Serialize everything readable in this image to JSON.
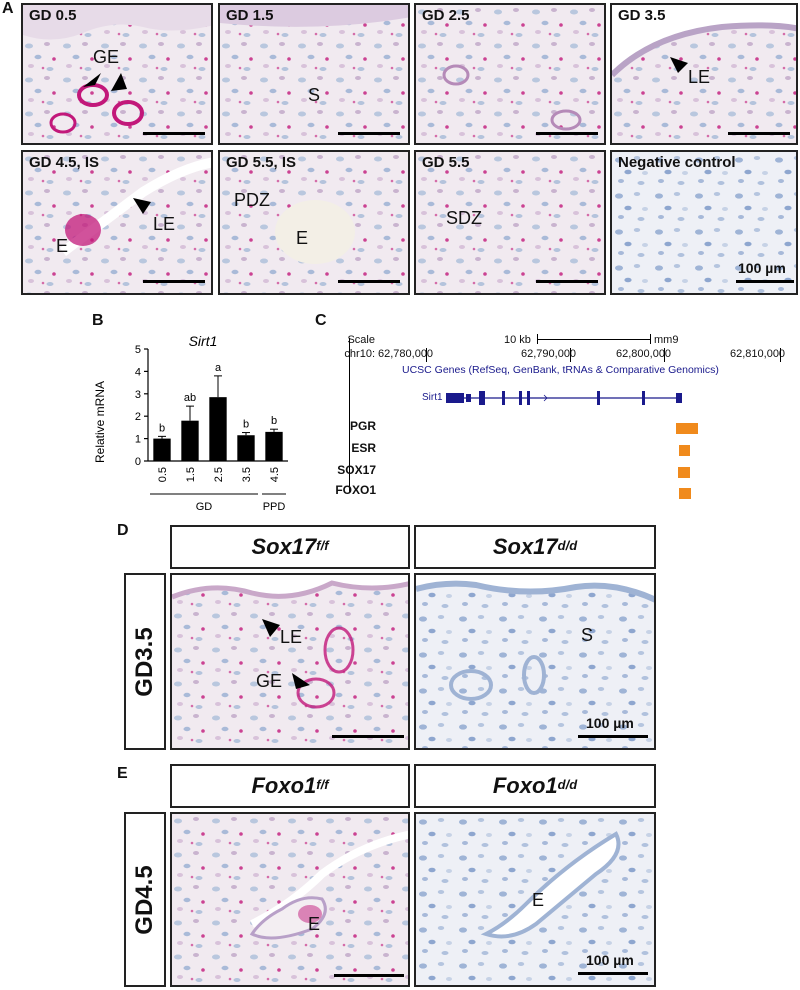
{
  "panels": {
    "a": "A",
    "b": "B",
    "c": "C",
    "d": "D",
    "e": "E"
  },
  "panel_a": {
    "tiles": [
      {
        "title": "GD 0.5",
        "labels": [
          "GE"
        ]
      },
      {
        "title": "GD 1.5",
        "labels": [
          "S"
        ]
      },
      {
        "title": "GD 2.5",
        "labels": []
      },
      {
        "title": "GD 3.5",
        "labels": [
          "LE"
        ]
      },
      {
        "title": "GD 4.5, IS",
        "labels": [
          "E",
          "LE"
        ]
      },
      {
        "title": "GD 5.5, IS",
        "labels": [
          "PDZ",
          "E"
        ]
      },
      {
        "title": "GD 5.5",
        "labels": [
          "SDZ"
        ]
      },
      {
        "title": "Negative control",
        "labels": []
      }
    ],
    "scale_text": "100 µm"
  },
  "chart_data": {
    "type": "bar",
    "title": "Sirt1",
    "ylabel": "Relative mRNA",
    "ylim": [
      0,
      5
    ],
    "yticks": [
      0,
      1,
      2,
      3,
      4,
      5
    ],
    "categories": [
      "0.5",
      "1.5",
      "2.5",
      "3.5",
      "4.5"
    ],
    "values": [
      1.0,
      1.8,
      2.85,
      1.15,
      1.3
    ],
    "errors": [
      0.1,
      0.65,
      0.95,
      0.12,
      0.12
    ],
    "letters": [
      "b",
      "ab",
      "a",
      "b",
      "b"
    ],
    "groups": [
      {
        "label": "GD",
        "from": 0,
        "to": 3
      },
      {
        "label": "PPD",
        "from": 4,
        "to": 4
      }
    ],
    "bar_color": "#000000"
  },
  "panel_c": {
    "scale_label": "Scale",
    "chrom_label": "chr10:",
    "scale_bar_label": "10 kb",
    "assembly": "mm9",
    "coords": [
      "62,780,000",
      "62,790,000",
      "62,800,000",
      "62,810,000"
    ],
    "track_title": "UCSC Genes (RefSeq, GenBank, tRNAs & Comparative Genomics)",
    "gene_name": "Sirt1",
    "tracks": [
      "PGR",
      "ESR",
      "SOX17",
      "FOXO1"
    ],
    "gene_color": "#1a1a8c",
    "peak_color": "#f08a1c"
  },
  "panel_d": {
    "col1_base": "Sox17",
    "col1_sup": "f/f",
    "col2_base": "Sox17",
    "col2_sup": "d/d",
    "row": "GD3.5",
    "labels_left": [
      "LE",
      "GE"
    ],
    "labels_right": [
      "S"
    ],
    "scale_text": "100 µm"
  },
  "panel_e": {
    "col1_base": "Foxo1",
    "col1_sup": "f/f",
    "col2_base": "Foxo1",
    "col2_sup": "d/d",
    "row": "GD4.5",
    "labels_left": [
      "E"
    ],
    "labels_right": [
      "E"
    ],
    "scale_text": "100 µm"
  },
  "colors": {
    "tissue": "#efe9f0",
    "stain": "#c2187a",
    "counterstain": "#5b7fb5"
  }
}
